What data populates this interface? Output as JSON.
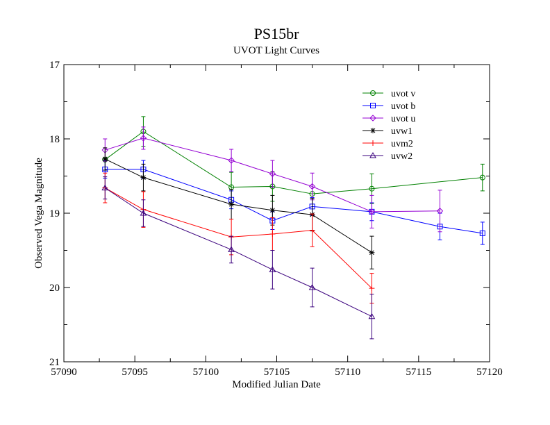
{
  "chart_data": {
    "type": "line",
    "title": "PS15br",
    "subtitle": "UVOT Light Curves",
    "xlabel": "Modified Julian Date",
    "ylabel": "Observed Vega Magnitude",
    "xlim": [
      57090,
      57120
    ],
    "ylim": [
      21,
      17
    ],
    "y_inverted": true,
    "x_ticks": [
      57090,
      57095,
      57100,
      57105,
      57110,
      57115,
      57120
    ],
    "y_ticks": [
      17,
      18,
      19,
      20,
      21
    ],
    "grid": false,
    "legend_position": "top-right",
    "series": [
      {
        "name": "uvot v",
        "color": "#008000",
        "marker": "circle",
        "x": [
          57092.9,
          57095.6,
          57101.8,
          57104.7,
          57107.5,
          57111.7,
          57119.5
        ],
        "y": [
          18.28,
          17.9,
          18.65,
          18.64,
          18.74,
          18.67,
          18.52
        ],
        "err": [
          0.0,
          0.2,
          0.2,
          0.2,
          0.0,
          0.2,
          0.18
        ]
      },
      {
        "name": "uvot b",
        "color": "#0000ff",
        "marker": "square",
        "x": [
          57092.9,
          57095.6,
          57101.8,
          57104.7,
          57107.5,
          57111.7,
          57116.5,
          57119.5
        ],
        "y": [
          18.41,
          18.41,
          18.82,
          19.1,
          18.91,
          18.98,
          19.18,
          19.27
        ],
        "err": [
          0.12,
          0.12,
          0.12,
          0.12,
          0.12,
          0.12,
          0.18,
          0.15
        ]
      },
      {
        "name": "uvot u",
        "color": "#9400d3",
        "marker": "diamond",
        "x": [
          57092.9,
          57095.6,
          57101.8,
          57104.7,
          57107.5,
          57111.7,
          57116.5
        ],
        "y": [
          18.15,
          17.99,
          18.29,
          18.47,
          18.64,
          18.98,
          18.97
        ],
        "err": [
          0.15,
          0.15,
          0.15,
          0.18,
          0.18,
          0.22,
          0.28
        ]
      },
      {
        "name": "uvw1",
        "color": "#000000",
        "marker": "asterisk",
        "x": [
          57092.9,
          57095.6,
          57101.8,
          57104.7,
          57107.5,
          57111.7
        ],
        "y": [
          18.27,
          18.52,
          18.88,
          18.96,
          19.02,
          19.53
        ],
        "err": [
          0.15,
          0.18,
          0.2,
          0.2,
          0.22,
          0.22
        ]
      },
      {
        "name": "uvm2",
        "color": "#ff0000",
        "marker": "plus",
        "x": [
          57092.9,
          57095.6,
          57101.8,
          57104.7,
          57107.5,
          57111.7
        ],
        "y": [
          18.66,
          18.95,
          19.32,
          19.28,
          19.23,
          20.01
        ],
        "err": [
          0.2,
          0.24,
          0.24,
          0.22,
          0.22,
          0.2
        ]
      },
      {
        "name": "uvw2",
        "color": "#3a007d",
        "marker": "triangle",
        "x": [
          57092.9,
          57095.6,
          57101.8,
          57104.7,
          57107.5,
          57111.7
        ],
        "y": [
          18.66,
          19.0,
          19.49,
          19.76,
          20.0,
          20.39
        ],
        "err": [
          0.15,
          0.18,
          0.18,
          0.26,
          0.26,
          0.3
        ]
      }
    ]
  }
}
